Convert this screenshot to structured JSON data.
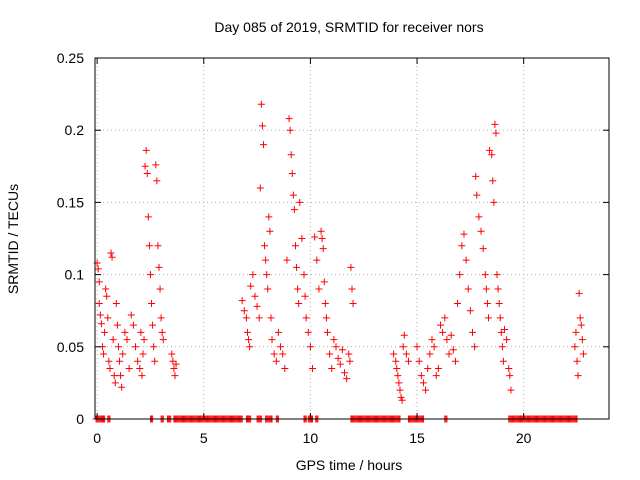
{
  "chart_data": {
    "type": "scatter",
    "title": "Day 085 of 2019, SRMTID for receiver nors",
    "xlabel": "GPS time / hours",
    "ylabel": "SRMTID / TECUs",
    "xlim": [
      -0.1,
      24
    ],
    "ylim": [
      0,
      0.25
    ],
    "x_ticks": [
      0,
      5,
      10,
      15,
      20
    ],
    "y_ticks": [
      0,
      0.05,
      0.1,
      0.15,
      0.2,
      0.25
    ],
    "x_tick_labels": [
      "0",
      "5",
      "10",
      "15",
      "20"
    ],
    "y_tick_labels": [
      "0",
      "0.05",
      "0.1",
      "0.15",
      "0.2",
      "0.25"
    ],
    "grid": true,
    "marker": "+",
    "color": "#ff0000",
    "series": [
      {
        "name": "SRMTID",
        "points": [
          [
            0.0,
            0.108
          ],
          [
            0.05,
            0.104
          ],
          [
            0.1,
            0.095
          ],
          [
            0.1,
            0.08
          ],
          [
            0.15,
            0.072
          ],
          [
            0.2,
            0.066
          ],
          [
            0.25,
            0.05
          ],
          [
            0.3,
            0.045
          ],
          [
            0.35,
            0.06
          ],
          [
            0.4,
            0.09
          ],
          [
            0.45,
            0.085
          ],
          [
            0.5,
            0.07
          ],
          [
            0.55,
            0.04
          ],
          [
            0.6,
            0.035
          ],
          [
            0.65,
            0.115
          ],
          [
            0.7,
            0.112
          ],
          [
            0.75,
            0.055
          ],
          [
            0.8,
            0.03
          ],
          [
            0.85,
            0.025
          ],
          [
            0.9,
            0.08
          ],
          [
            0.95,
            0.065
          ],
          [
            1.0,
            0.05
          ],
          [
            1.05,
            0.04
          ],
          [
            1.1,
            0.03
          ],
          [
            1.15,
            0.022
          ],
          [
            1.2,
            0.045
          ],
          [
            1.3,
            0.06
          ],
          [
            1.4,
            0.055
          ],
          [
            1.5,
            0.035
          ],
          [
            1.6,
            0.072
          ],
          [
            1.7,
            0.065
          ],
          [
            1.8,
            0.05
          ],
          [
            1.9,
            0.04
          ],
          [
            2.0,
            0.035
          ],
          [
            2.05,
            0.06
          ],
          [
            2.1,
            0.03
          ],
          [
            2.15,
            0.045
          ],
          [
            2.2,
            0.055
          ],
          [
            2.25,
            0.175
          ],
          [
            2.3,
            0.186
          ],
          [
            2.35,
            0.17
          ],
          [
            2.4,
            0.14
          ],
          [
            2.45,
            0.12
          ],
          [
            2.5,
            0.1
          ],
          [
            2.55,
            0.08
          ],
          [
            2.6,
            0.065
          ],
          [
            2.65,
            0.05
          ],
          [
            2.7,
            0.04
          ],
          [
            2.75,
            0.176
          ],
          [
            2.8,
            0.165
          ],
          [
            2.85,
            0.12
          ],
          [
            2.9,
            0.105
          ],
          [
            2.95,
            0.09
          ],
          [
            3.0,
            0.07
          ],
          [
            3.05,
            0.06
          ],
          [
            3.1,
            0.055
          ],
          [
            3.5,
            0.045
          ],
          [
            3.55,
            0.04
          ],
          [
            3.6,
            0.035
          ],
          [
            3.65,
            0.03
          ],
          [
            3.7,
            0.038
          ],
          [
            6.8,
            0.082
          ],
          [
            6.9,
            0.075
          ],
          [
            7.0,
            0.07
          ],
          [
            7.05,
            0.06
          ],
          [
            7.1,
            0.055
          ],
          [
            7.15,
            0.05
          ],
          [
            7.2,
            0.092
          ],
          [
            7.3,
            0.1
          ],
          [
            7.4,
            0.085
          ],
          [
            7.5,
            0.078
          ],
          [
            7.6,
            0.07
          ],
          [
            7.65,
            0.16
          ],
          [
            7.7,
            0.218
          ],
          [
            7.75,
            0.203
          ],
          [
            7.8,
            0.19
          ],
          [
            7.85,
            0.12
          ],
          [
            7.9,
            0.11
          ],
          [
            7.95,
            0.1
          ],
          [
            8.0,
            0.09
          ],
          [
            8.05,
            0.14
          ],
          [
            8.1,
            0.13
          ],
          [
            8.15,
            0.07
          ],
          [
            8.2,
            0.055
          ],
          [
            8.3,
            0.045
          ],
          [
            8.4,
            0.04
          ],
          [
            8.5,
            0.06
          ],
          [
            8.6,
            0.05
          ],
          [
            8.7,
            0.045
          ],
          [
            8.8,
            0.035
          ],
          [
            8.9,
            0.11
          ],
          [
            9.0,
            0.208
          ],
          [
            9.05,
            0.2
          ],
          [
            9.1,
            0.183
          ],
          [
            9.15,
            0.17
          ],
          [
            9.2,
            0.155
          ],
          [
            9.25,
            0.145
          ],
          [
            9.3,
            0.12
          ],
          [
            9.35,
            0.105
          ],
          [
            9.4,
            0.09
          ],
          [
            9.45,
            0.08
          ],
          [
            9.5,
            0.15
          ],
          [
            9.6,
            0.125
          ],
          [
            9.7,
            0.1
          ],
          [
            9.75,
            0.085
          ],
          [
            9.8,
            0.07
          ],
          [
            9.9,
            0.06
          ],
          [
            10.0,
            0.05
          ],
          [
            10.1,
            0.035
          ],
          [
            10.2,
            0.126
          ],
          [
            10.3,
            0.11
          ],
          [
            10.4,
            0.09
          ],
          [
            10.5,
            0.13
          ],
          [
            10.55,
            0.125
          ],
          [
            10.6,
            0.118
          ],
          [
            10.65,
            0.095
          ],
          [
            10.7,
            0.08
          ],
          [
            10.75,
            0.07
          ],
          [
            10.8,
            0.06
          ],
          [
            10.9,
            0.045
          ],
          [
            11.0,
            0.035
          ],
          [
            11.1,
            0.055
          ],
          [
            11.2,
            0.05
          ],
          [
            11.3,
            0.042
          ],
          [
            11.4,
            0.038
          ],
          [
            11.5,
            0.048
          ],
          [
            11.6,
            0.032
          ],
          [
            11.7,
            0.028
          ],
          [
            11.8,
            0.045
          ],
          [
            11.85,
            0.04
          ],
          [
            11.9,
            0.105
          ],
          [
            11.95,
            0.09
          ],
          [
            12.0,
            0.08
          ],
          [
            13.9,
            0.045
          ],
          [
            14.0,
            0.04
          ],
          [
            14.05,
            0.035
          ],
          [
            14.1,
            0.03
          ],
          [
            14.15,
            0.025
          ],
          [
            14.2,
            0.02
          ],
          [
            14.25,
            0.015
          ],
          [
            14.3,
            0.013
          ],
          [
            14.35,
            0.05
          ],
          [
            14.4,
            0.058
          ],
          [
            14.5,
            0.045
          ],
          [
            14.6,
            0.04
          ],
          [
            15.0,
            0.05
          ],
          [
            15.1,
            0.04
          ],
          [
            15.2,
            0.03
          ],
          [
            15.3,
            0.025
          ],
          [
            15.4,
            0.02
          ],
          [
            15.5,
            0.035
          ],
          [
            15.6,
            0.045
          ],
          [
            15.7,
            0.055
          ],
          [
            15.8,
            0.05
          ],
          [
            15.9,
            0.03
          ],
          [
            16.0,
            0.035
          ],
          [
            16.1,
            0.065
          ],
          [
            16.2,
            0.06
          ],
          [
            16.3,
            0.07
          ],
          [
            16.4,
            0.055
          ],
          [
            16.5,
            0.045
          ],
          [
            16.6,
            0.058
          ],
          [
            16.7,
            0.048
          ],
          [
            16.8,
            0.04
          ],
          [
            16.9,
            0.08
          ],
          [
            17.0,
            0.1
          ],
          [
            17.1,
            0.12
          ],
          [
            17.2,
            0.128
          ],
          [
            17.3,
            0.11
          ],
          [
            17.4,
            0.09
          ],
          [
            17.5,
            0.075
          ],
          [
            17.6,
            0.06
          ],
          [
            17.7,
            0.05
          ],
          [
            17.75,
            0.168
          ],
          [
            17.8,
            0.155
          ],
          [
            17.9,
            0.14
          ],
          [
            18.0,
            0.13
          ],
          [
            18.1,
            0.118
          ],
          [
            18.2,
            0.1
          ],
          [
            18.25,
            0.09
          ],
          [
            18.3,
            0.08
          ],
          [
            18.35,
            0.07
          ],
          [
            18.4,
            0.186
          ],
          [
            18.5,
            0.183
          ],
          [
            18.55,
            0.165
          ],
          [
            18.6,
            0.15
          ],
          [
            18.65,
            0.204
          ],
          [
            18.7,
            0.198
          ],
          [
            18.75,
            0.1
          ],
          [
            18.8,
            0.09
          ],
          [
            18.85,
            0.08
          ],
          [
            18.9,
            0.07
          ],
          [
            18.95,
            0.06
          ],
          [
            19.0,
            0.05
          ],
          [
            19.05,
            0.04
          ],
          [
            19.1,
            0.062
          ],
          [
            19.2,
            0.055
          ],
          [
            19.3,
            0.035
          ],
          [
            19.35,
            0.03
          ],
          [
            19.4,
            0.02
          ],
          [
            22.4,
            0.05
          ],
          [
            22.45,
            0.06
          ],
          [
            22.5,
            0.04
          ],
          [
            22.55,
            0.03
          ],
          [
            22.6,
            0.087
          ],
          [
            22.65,
            0.07
          ],
          [
            22.7,
            0.065
          ],
          [
            22.75,
            0.055
          ],
          [
            22.8,
            0.045
          ]
        ],
        "zero_ranges": [
          [
            -0.05,
            0.35
          ],
          [
            0.5,
            0.6
          ],
          [
            2.5,
            2.6
          ],
          [
            3.0,
            3.1
          ],
          [
            3.3,
            3.45
          ],
          [
            3.6,
            6.8
          ],
          [
            7.0,
            7.2
          ],
          [
            7.5,
            7.7
          ],
          [
            7.9,
            8.2
          ],
          [
            8.4,
            8.5
          ],
          [
            9.7,
            9.8
          ],
          [
            9.9,
            10.1
          ],
          [
            10.25,
            10.35
          ],
          [
            11.9,
            14.2
          ],
          [
            14.6,
            15.3
          ],
          [
            16.3,
            16.4
          ],
          [
            19.3,
            22.5
          ]
        ]
      }
    ]
  }
}
